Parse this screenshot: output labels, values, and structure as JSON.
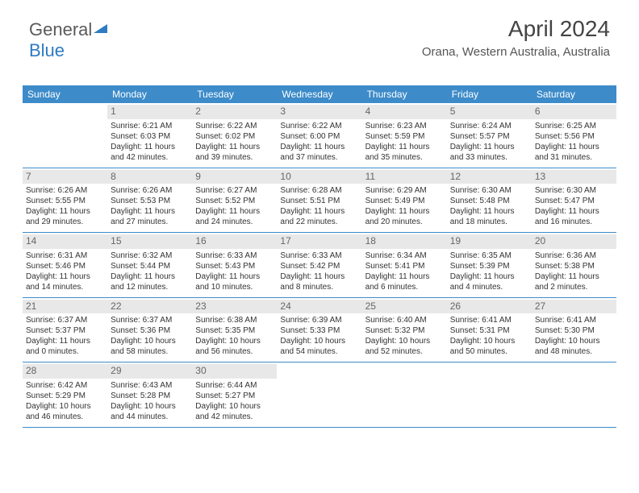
{
  "brand": {
    "part1": "General",
    "part2": "Blue"
  },
  "header": {
    "title": "April 2024",
    "location": "Orana, Western Australia, Australia"
  },
  "colors": {
    "accent": "#3d8bc9",
    "text": "#333333",
    "daynum_bg": "#e8e8e8",
    "logo_gray": "#5a5a5a",
    "logo_blue": "#2d7bc0"
  },
  "daysOfWeek": [
    "Sunday",
    "Monday",
    "Tuesday",
    "Wednesday",
    "Thursday",
    "Friday",
    "Saturday"
  ],
  "weeks": [
    [
      {
        "num": "",
        "lines": []
      },
      {
        "num": "1",
        "lines": [
          "Sunrise: 6:21 AM",
          "Sunset: 6:03 PM",
          "Daylight: 11 hours and 42 minutes."
        ]
      },
      {
        "num": "2",
        "lines": [
          "Sunrise: 6:22 AM",
          "Sunset: 6:02 PM",
          "Daylight: 11 hours and 39 minutes."
        ]
      },
      {
        "num": "3",
        "lines": [
          "Sunrise: 6:22 AM",
          "Sunset: 6:00 PM",
          "Daylight: 11 hours and 37 minutes."
        ]
      },
      {
        "num": "4",
        "lines": [
          "Sunrise: 6:23 AM",
          "Sunset: 5:59 PM",
          "Daylight: 11 hours and 35 minutes."
        ]
      },
      {
        "num": "5",
        "lines": [
          "Sunrise: 6:24 AM",
          "Sunset: 5:57 PM",
          "Daylight: 11 hours and 33 minutes."
        ]
      },
      {
        "num": "6",
        "lines": [
          "Sunrise: 6:25 AM",
          "Sunset: 5:56 PM",
          "Daylight: 11 hours and 31 minutes."
        ]
      }
    ],
    [
      {
        "num": "7",
        "lines": [
          "Sunrise: 6:26 AM",
          "Sunset: 5:55 PM",
          "Daylight: 11 hours and 29 minutes."
        ]
      },
      {
        "num": "8",
        "lines": [
          "Sunrise: 6:26 AM",
          "Sunset: 5:53 PM",
          "Daylight: 11 hours and 27 minutes."
        ]
      },
      {
        "num": "9",
        "lines": [
          "Sunrise: 6:27 AM",
          "Sunset: 5:52 PM",
          "Daylight: 11 hours and 24 minutes."
        ]
      },
      {
        "num": "10",
        "lines": [
          "Sunrise: 6:28 AM",
          "Sunset: 5:51 PM",
          "Daylight: 11 hours and 22 minutes."
        ]
      },
      {
        "num": "11",
        "lines": [
          "Sunrise: 6:29 AM",
          "Sunset: 5:49 PM",
          "Daylight: 11 hours and 20 minutes."
        ]
      },
      {
        "num": "12",
        "lines": [
          "Sunrise: 6:30 AM",
          "Sunset: 5:48 PM",
          "Daylight: 11 hours and 18 minutes."
        ]
      },
      {
        "num": "13",
        "lines": [
          "Sunrise: 6:30 AM",
          "Sunset: 5:47 PM",
          "Daylight: 11 hours and 16 minutes."
        ]
      }
    ],
    [
      {
        "num": "14",
        "lines": [
          "Sunrise: 6:31 AM",
          "Sunset: 5:46 PM",
          "Daylight: 11 hours and 14 minutes."
        ]
      },
      {
        "num": "15",
        "lines": [
          "Sunrise: 6:32 AM",
          "Sunset: 5:44 PM",
          "Daylight: 11 hours and 12 minutes."
        ]
      },
      {
        "num": "16",
        "lines": [
          "Sunrise: 6:33 AM",
          "Sunset: 5:43 PM",
          "Daylight: 11 hours and 10 minutes."
        ]
      },
      {
        "num": "17",
        "lines": [
          "Sunrise: 6:33 AM",
          "Sunset: 5:42 PM",
          "Daylight: 11 hours and 8 minutes."
        ]
      },
      {
        "num": "18",
        "lines": [
          "Sunrise: 6:34 AM",
          "Sunset: 5:41 PM",
          "Daylight: 11 hours and 6 minutes."
        ]
      },
      {
        "num": "19",
        "lines": [
          "Sunrise: 6:35 AM",
          "Sunset: 5:39 PM",
          "Daylight: 11 hours and 4 minutes."
        ]
      },
      {
        "num": "20",
        "lines": [
          "Sunrise: 6:36 AM",
          "Sunset: 5:38 PM",
          "Daylight: 11 hours and 2 minutes."
        ]
      }
    ],
    [
      {
        "num": "21",
        "lines": [
          "Sunrise: 6:37 AM",
          "Sunset: 5:37 PM",
          "Daylight: 11 hours and 0 minutes."
        ]
      },
      {
        "num": "22",
        "lines": [
          "Sunrise: 6:37 AM",
          "Sunset: 5:36 PM",
          "Daylight: 10 hours and 58 minutes."
        ]
      },
      {
        "num": "23",
        "lines": [
          "Sunrise: 6:38 AM",
          "Sunset: 5:35 PM",
          "Daylight: 10 hours and 56 minutes."
        ]
      },
      {
        "num": "24",
        "lines": [
          "Sunrise: 6:39 AM",
          "Sunset: 5:33 PM",
          "Daylight: 10 hours and 54 minutes."
        ]
      },
      {
        "num": "25",
        "lines": [
          "Sunrise: 6:40 AM",
          "Sunset: 5:32 PM",
          "Daylight: 10 hours and 52 minutes."
        ]
      },
      {
        "num": "26",
        "lines": [
          "Sunrise: 6:41 AM",
          "Sunset: 5:31 PM",
          "Daylight: 10 hours and 50 minutes."
        ]
      },
      {
        "num": "27",
        "lines": [
          "Sunrise: 6:41 AM",
          "Sunset: 5:30 PM",
          "Daylight: 10 hours and 48 minutes."
        ]
      }
    ],
    [
      {
        "num": "28",
        "lines": [
          "Sunrise: 6:42 AM",
          "Sunset: 5:29 PM",
          "Daylight: 10 hours and 46 minutes."
        ]
      },
      {
        "num": "29",
        "lines": [
          "Sunrise: 6:43 AM",
          "Sunset: 5:28 PM",
          "Daylight: 10 hours and 44 minutes."
        ]
      },
      {
        "num": "30",
        "lines": [
          "Sunrise: 6:44 AM",
          "Sunset: 5:27 PM",
          "Daylight: 10 hours and 42 minutes."
        ]
      },
      {
        "num": "",
        "lines": []
      },
      {
        "num": "",
        "lines": []
      },
      {
        "num": "",
        "lines": []
      },
      {
        "num": "",
        "lines": []
      }
    ]
  ]
}
